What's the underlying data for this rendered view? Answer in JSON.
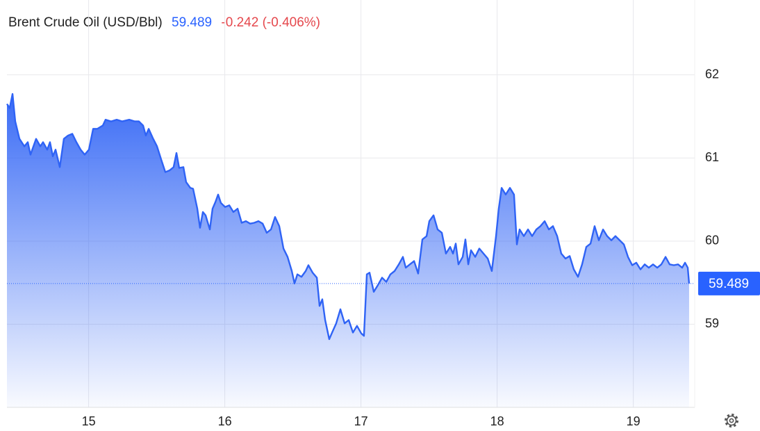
{
  "chart_data": {
    "type": "area",
    "title": "Brent Crude Oil (USD/Bbl)",
    "last_price": 59.489,
    "change_label": "-0.242 (-0.406%)",
    "color": "#2f63f5",
    "price_color": "#2962ff",
    "change_color": "#e5484d",
    "grid": true,
    "xlim": [
      14.4,
      19.451
    ],
    "ylim": [
      58,
      62.9
    ],
    "xticks": [
      15,
      16,
      17,
      18,
      19
    ],
    "yticks": [
      59,
      60,
      61,
      62
    ],
    "x": [
      14.4,
      14.42,
      14.441,
      14.461,
      14.492,
      14.528,
      14.553,
      14.573,
      14.614,
      14.645,
      14.665,
      14.696,
      14.716,
      14.737,
      14.757,
      14.788,
      14.818,
      14.849,
      14.88,
      14.91,
      14.941,
      14.971,
      15.002,
      15.033,
      15.063,
      15.104,
      15.124,
      15.165,
      15.206,
      15.247,
      15.298,
      15.339,
      15.369,
      15.4,
      15.42,
      15.441,
      15.471,
      15.502,
      15.533,
      15.563,
      15.594,
      15.624,
      15.645,
      15.665,
      15.696,
      15.716,
      15.747,
      15.767,
      15.798,
      15.818,
      15.839,
      15.859,
      15.89,
      15.91,
      15.931,
      15.951,
      15.971,
      16.002,
      16.033,
      16.063,
      16.094,
      16.124,
      16.155,
      16.186,
      16.216,
      16.247,
      16.278,
      16.308,
      16.339,
      16.369,
      16.4,
      16.431,
      16.461,
      16.492,
      16.512,
      16.533,
      16.563,
      16.594,
      16.614,
      16.645,
      16.676,
      16.696,
      16.716,
      16.737,
      16.767,
      16.788,
      16.818,
      16.849,
      16.88,
      16.91,
      16.941,
      16.971,
      17.002,
      17.022,
      17.043,
      17.063,
      17.094,
      17.124,
      17.155,
      17.186,
      17.216,
      17.247,
      17.278,
      17.308,
      17.329,
      17.359,
      17.39,
      17.42,
      17.451,
      17.482,
      17.502,
      17.533,
      17.563,
      17.594,
      17.624,
      17.655,
      17.676,
      17.696,
      17.716,
      17.747,
      17.767,
      17.788,
      17.808,
      17.839,
      17.869,
      17.9,
      17.931,
      17.961,
      17.992,
      18.012,
      18.033,
      18.063,
      18.094,
      18.124,
      18.145,
      18.165,
      18.196,
      18.227,
      18.257,
      18.288,
      18.318,
      18.349,
      18.38,
      18.41,
      18.441,
      18.471,
      18.502,
      18.533,
      18.563,
      18.594,
      18.624,
      18.655,
      18.686,
      18.716,
      18.747,
      18.778,
      18.808,
      18.839,
      18.869,
      18.9,
      18.931,
      18.961,
      18.992,
      19.022,
      19.053,
      19.084,
      19.114,
      19.145,
      19.176,
      19.206,
      19.237,
      19.267,
      19.298,
      19.329,
      19.359,
      19.38,
      19.4,
      19.41
    ],
    "values": [
      61.65,
      61.6,
      61.77,
      61.44,
      61.23,
      61.14,
      61.19,
      61.04,
      61.23,
      61.14,
      61.19,
      61.1,
      61.19,
      61.02,
      61.1,
      60.89,
      61.23,
      61.27,
      61.29,
      61.19,
      61.1,
      61.04,
      61.1,
      61.35,
      61.35,
      61.39,
      61.46,
      61.44,
      61.46,
      61.44,
      61.46,
      61.44,
      61.44,
      61.39,
      61.27,
      61.35,
      61.24,
      61.14,
      60.98,
      60.83,
      60.85,
      60.89,
      61.06,
      60.88,
      60.89,
      60.71,
      60.64,
      60.63,
      60.39,
      60.16,
      60.35,
      60.31,
      60.14,
      60.39,
      60.47,
      60.56,
      60.46,
      60.41,
      60.43,
      60.35,
      60.39,
      60.22,
      60.24,
      60.21,
      60.22,
      60.24,
      60.21,
      60.1,
      60.14,
      60.29,
      60.18,
      59.91,
      59.81,
      59.64,
      59.49,
      59.6,
      59.57,
      59.64,
      59.71,
      59.62,
      59.56,
      59.22,
      59.3,
      59.05,
      58.82,
      58.9,
      59.01,
      59.18,
      59.01,
      59.05,
      58.9,
      58.98,
      58.89,
      58.86,
      59.6,
      59.62,
      59.39,
      59.47,
      59.56,
      59.51,
      59.6,
      59.64,
      59.72,
      59.81,
      59.68,
      59.72,
      59.76,
      59.61,
      60.02,
      60.06,
      60.24,
      60.31,
      60.14,
      60.1,
      59.85,
      59.93,
      59.85,
      59.97,
      59.72,
      59.81,
      60.02,
      59.72,
      59.89,
      59.81,
      59.91,
      59.85,
      59.79,
      59.64,
      60.06,
      60.39,
      60.64,
      60.56,
      60.64,
      60.56,
      59.96,
      60.14,
      60.06,
      60.14,
      60.06,
      60.14,
      60.18,
      60.24,
      60.14,
      60.18,
      60.06,
      59.85,
      59.79,
      59.82,
      59.66,
      59.57,
      59.72,
      59.93,
      59.97,
      60.18,
      60.01,
      60.14,
      60.06,
      60.01,
      60.06,
      60.01,
      59.96,
      59.81,
      59.71,
      59.74,
      59.66,
      59.72,
      59.68,
      59.72,
      59.68,
      59.72,
      59.81,
      59.72,
      59.71,
      59.72,
      59.68,
      59.74,
      59.68,
      59.489
    ]
  }
}
